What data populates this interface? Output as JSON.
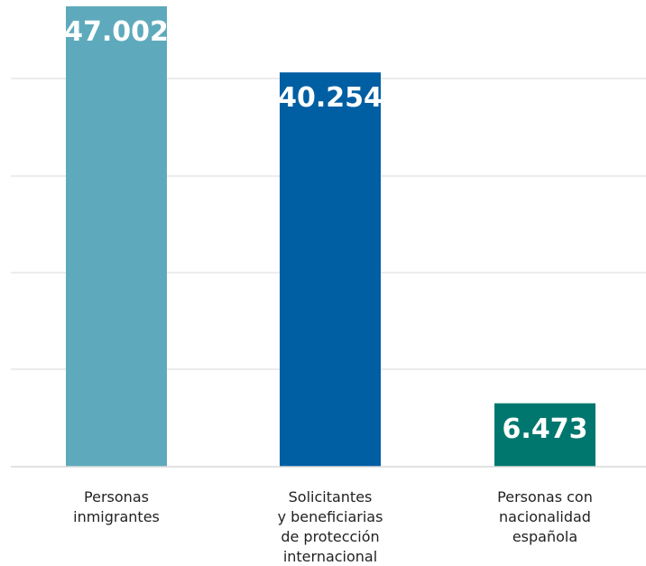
{
  "chart_data": {
    "type": "bar",
    "categories": [
      [
        "Personas",
        "inmigrantes"
      ],
      [
        "Solicitantes",
        "y beneficiarias",
        "de protección",
        "internacional"
      ],
      [
        "Personas con",
        "nacionalidad",
        "española"
      ]
    ],
    "values": [
      47002,
      40254,
      6473
    ],
    "value_labels": [
      "47.002",
      "40.254",
      "6.473"
    ],
    "colors": [
      "#5eaabc",
      "#005ea3",
      "#00776e"
    ],
    "ylim": [
      0,
      47002
    ],
    "grid": true,
    "title": "",
    "xlabel": "",
    "ylabel": ""
  }
}
